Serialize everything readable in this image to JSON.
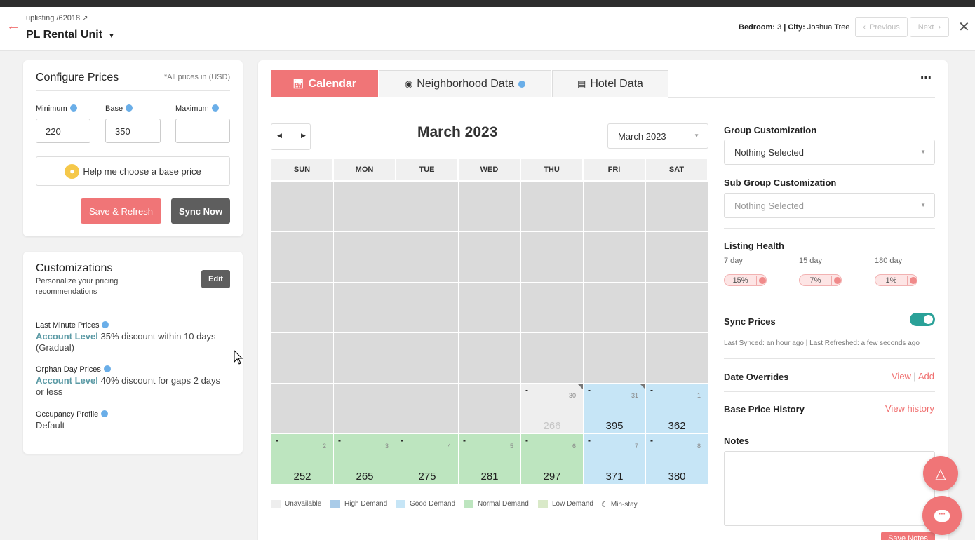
{
  "header": {
    "breadcrumb": "uplisting /62018",
    "unit_name": "PL Rental Unit",
    "bedroom_label": "Bedroom:",
    "bedroom_value": "3",
    "city_label": "City:",
    "city_value": "Joshua Tree",
    "previous": "Previous",
    "next": "Next"
  },
  "configure": {
    "title": "Configure Prices",
    "note": "*All prices in (USD)",
    "minimum_label": "Minimum",
    "base_label": "Base",
    "maximum_label": "Maximum",
    "minimum_value": "220",
    "base_value": "350",
    "maximum_value": "",
    "help_button": "Help me choose a base price",
    "save_button": "Save & Refresh",
    "sync_button": "Sync Now"
  },
  "customizations": {
    "title": "Customizations",
    "subtitle": "Personalize your pricing recommendations",
    "edit": "Edit",
    "items": [
      {
        "label": "Last Minute Prices",
        "level": "Account Level",
        "text": "35% discount within 10 days (Gradual)"
      },
      {
        "label": "Orphan Day Prices",
        "level": "Account Level",
        "text": "40% discount for gaps 2 days or less"
      },
      {
        "label": "Occupancy Profile",
        "level": "",
        "text": "Default"
      }
    ]
  },
  "tabs": [
    {
      "label": "Calendar",
      "icon": "calendar-icon"
    },
    {
      "label": "Neighborhood Data",
      "icon": "location-pin-icon"
    },
    {
      "label": "Hotel Data",
      "icon": "bed-icon"
    }
  ],
  "calendar": {
    "month_title": "March 2023",
    "month_select": "March 2023",
    "days": [
      "SUN",
      "MON",
      "TUE",
      "WED",
      "THU",
      "FRI",
      "SAT"
    ],
    "row5": [
      {
        "day": "30",
        "price": "266",
        "status": "unavailable"
      },
      {
        "day": "31",
        "price": "395",
        "status": "good"
      },
      {
        "day": "1",
        "price": "362",
        "status": "good"
      }
    ],
    "row6": [
      {
        "day": "2",
        "price": "252",
        "status": "normal"
      },
      {
        "day": "3",
        "price": "265",
        "status": "normal"
      },
      {
        "day": "4",
        "price": "275",
        "status": "normal"
      },
      {
        "day": "5",
        "price": "281",
        "status": "normal"
      },
      {
        "day": "6",
        "price": "297",
        "status": "normal"
      },
      {
        "day": "7",
        "price": "371",
        "status": "good"
      },
      {
        "day": "8",
        "price": "380",
        "status": "good"
      }
    ],
    "dash": "-",
    "colors": {
      "unavailable": "#eeeeee",
      "good": "#c6e5f6",
      "normal": "#bde5bf",
      "empty": "#dadada",
      "high": "#a9cbe8",
      "low": "#d9e9c8"
    }
  },
  "legend": [
    {
      "label": "Unavailable",
      "color": "#eeeeee"
    },
    {
      "label": "High Demand",
      "color": "#a9cbe8"
    },
    {
      "label": "Good Demand",
      "color": "#c6e5f6"
    },
    {
      "label": "Normal Demand",
      "color": "#bde5bf"
    },
    {
      "label": "Low Demand",
      "color": "#d9e9c8"
    },
    {
      "label": "Min-stay",
      "color": ""
    }
  ],
  "right": {
    "group_label": "Group Customization",
    "group_value": "Nothing Selected",
    "subgroup_label": "Sub Group Customization",
    "subgroup_value": "Nothing Selected",
    "health_label": "Listing Health",
    "health": [
      {
        "period": "7 day",
        "value": "15%"
      },
      {
        "period": "15 day",
        "value": "7%"
      },
      {
        "period": "180 day",
        "value": "1%"
      }
    ],
    "sync_label": "Sync Prices",
    "sync_status": "Last Synced: an hour ago | Last Refreshed: a few seconds ago",
    "overrides_label": "Date Overrides",
    "view": "View",
    "add": "Add",
    "history_label": "Base Price History",
    "history_link": "View history",
    "notes_label": "Notes",
    "save_notes": "Save Notes"
  },
  "accent": "#f07577"
}
